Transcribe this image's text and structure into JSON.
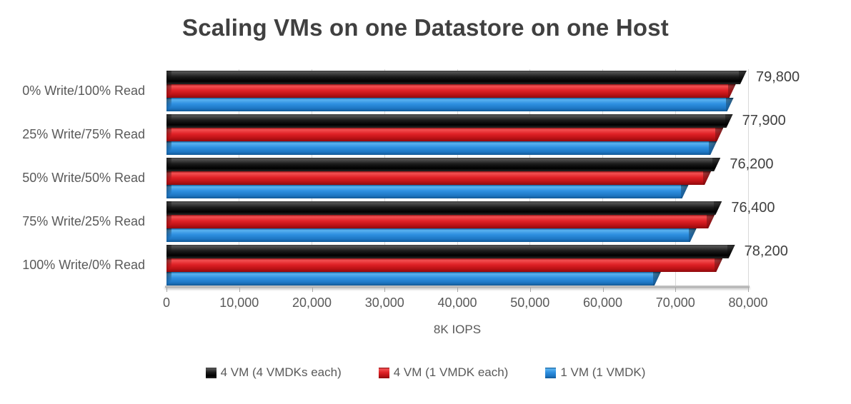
{
  "chart_data": {
    "type": "bar",
    "orientation": "horizontal",
    "title": "Scaling VMs on one Datastore on one Host",
    "xlabel": "8K IOPS",
    "xlim": [
      0,
      80000
    ],
    "xticks": [
      "0",
      "10,000",
      "20,000",
      "30,000",
      "40,000",
      "50,000",
      "60,000",
      "70,000",
      "80,000"
    ],
    "grid": true,
    "legend_position": "bottom",
    "categories": [
      "0% Write/100% Read",
      "25% Write/75% Read",
      "50% Write/50% Read",
      "75% Write/25% Read",
      "100% Write/0% Read"
    ],
    "series": [
      {
        "name": "4 VM (4 VMDKs each)",
        "color": "#141414",
        "values": [
          79800,
          77900,
          76200,
          76400,
          78200
        ],
        "data_labels": [
          "79,800",
          "77,900",
          "76,200",
          "76,400",
          "78,200"
        ]
      },
      {
        "name": "4 VM (1 VMDK each)",
        "color": "#df1f24",
        "values": [
          78300,
          76600,
          74900,
          75400,
          76500
        ]
      },
      {
        "name": "1 VM (1 VMDK)",
        "color": "#2f8fdd",
        "values": [
          78000,
          75700,
          71800,
          72900,
          68000
        ]
      }
    ]
  }
}
